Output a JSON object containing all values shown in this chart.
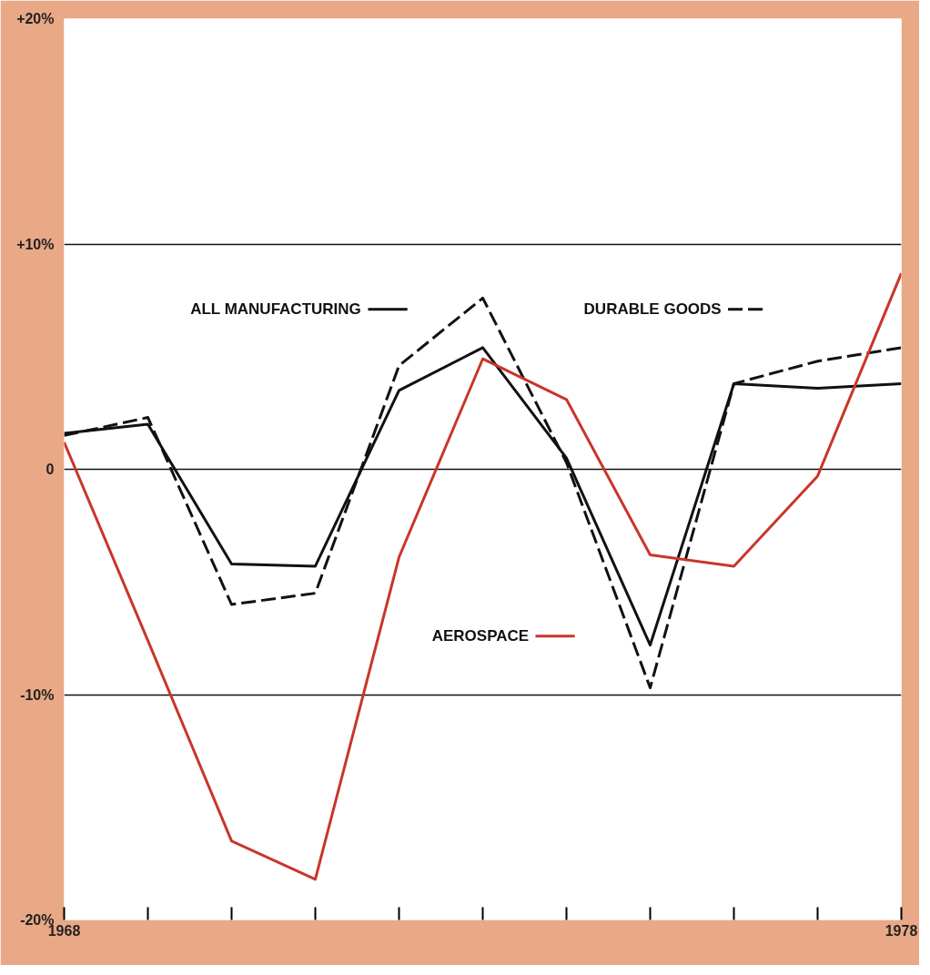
{
  "chart_data": {
    "type": "line",
    "x": [
      1968,
      1969,
      1970,
      1971,
      1972,
      1973,
      1974,
      1975,
      1976,
      1977,
      1978
    ],
    "series": [
      {
        "name": "ALL MANUFACTURING",
        "color": "#111111",
        "line_style": "solid",
        "values": [
          1.6,
          2.0,
          -4.2,
          -4.3,
          3.5,
          5.4,
          0.5,
          -7.8,
          3.8,
          3.6,
          3.8
        ]
      },
      {
        "name": "DURABLE GOODS",
        "color": "#111111",
        "line_style": "dashed",
        "values": [
          1.5,
          2.3,
          -6.0,
          -5.5,
          4.6,
          7.6,
          0.3,
          -9.7,
          3.8,
          4.8,
          5.4
        ]
      },
      {
        "name": "AEROSPACE",
        "color": "#c8362a",
        "line_style": "solid",
        "values": [
          1.2,
          -7.6,
          -16.5,
          -18.2,
          -3.9,
          4.9,
          3.1,
          -3.8,
          -4.3,
          -0.3,
          8.7
        ]
      }
    ],
    "xlim": [
      1968,
      1978
    ],
    "xticks": [
      1968,
      {
        "value": 1969,
        "label": null
      },
      {
        "value": 1970,
        "label": null
      },
      {
        "value": 1971,
        "label": null
      },
      {
        "value": 1972,
        "label": null
      },
      {
        "value": 1973,
        "label": null
      },
      {
        "value": 1974,
        "label": null
      },
      {
        "value": 1975,
        "label": null
      },
      {
        "value": 1976,
        "label": null
      },
      {
        "value": 1977,
        "label": null
      },
      1978
    ],
    "ylim": [
      -20,
      20
    ],
    "yticks": [
      {
        "value": -20,
        "label": "-20%"
      },
      {
        "value": -10,
        "label": "-10%"
      },
      {
        "value": 0,
        "label": "0"
      },
      {
        "value": 10,
        "label": "+10%"
      },
      {
        "value": 20,
        "label": "+20%"
      }
    ],
    "grid": "y",
    "legend": "center",
    "marker": "none"
  }
}
